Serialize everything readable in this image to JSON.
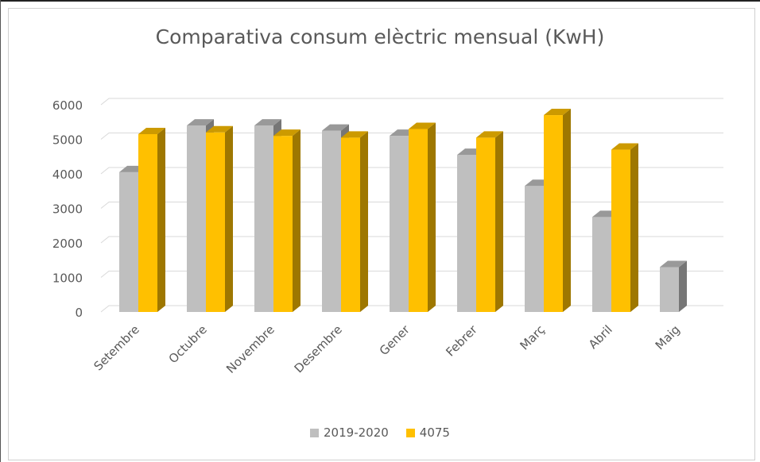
{
  "chart_data": {
    "type": "bar",
    "title": "Comparativa consum elèctric mensual (KwH)",
    "xlabel": "",
    "ylabel": "",
    "categories": [
      "Setembre",
      "Octubre",
      "Novembre",
      "Desembre",
      "Gener",
      "Febrer",
      "Març",
      "Abril",
      "Maig"
    ],
    "series": [
      {
        "name": "2019-2020",
        "color": "#bfbfbf",
        "values": [
          4050,
          5400,
          5400,
          5250,
          5100,
          4550,
          3650,
          2750,
          1300
        ]
      },
      {
        "name": "4075",
        "color": "#ffc000",
        "values": [
          5150,
          5200,
          5100,
          5050,
          5300,
          5050,
          5700,
          4700,
          null
        ]
      }
    ],
    "yticks": [
      0,
      1000,
      2000,
      3000,
      4000,
      5000,
      6000
    ],
    "ylim": [
      0,
      6000
    ],
    "grid": true,
    "legend": "bottom",
    "style": "3d-column"
  }
}
